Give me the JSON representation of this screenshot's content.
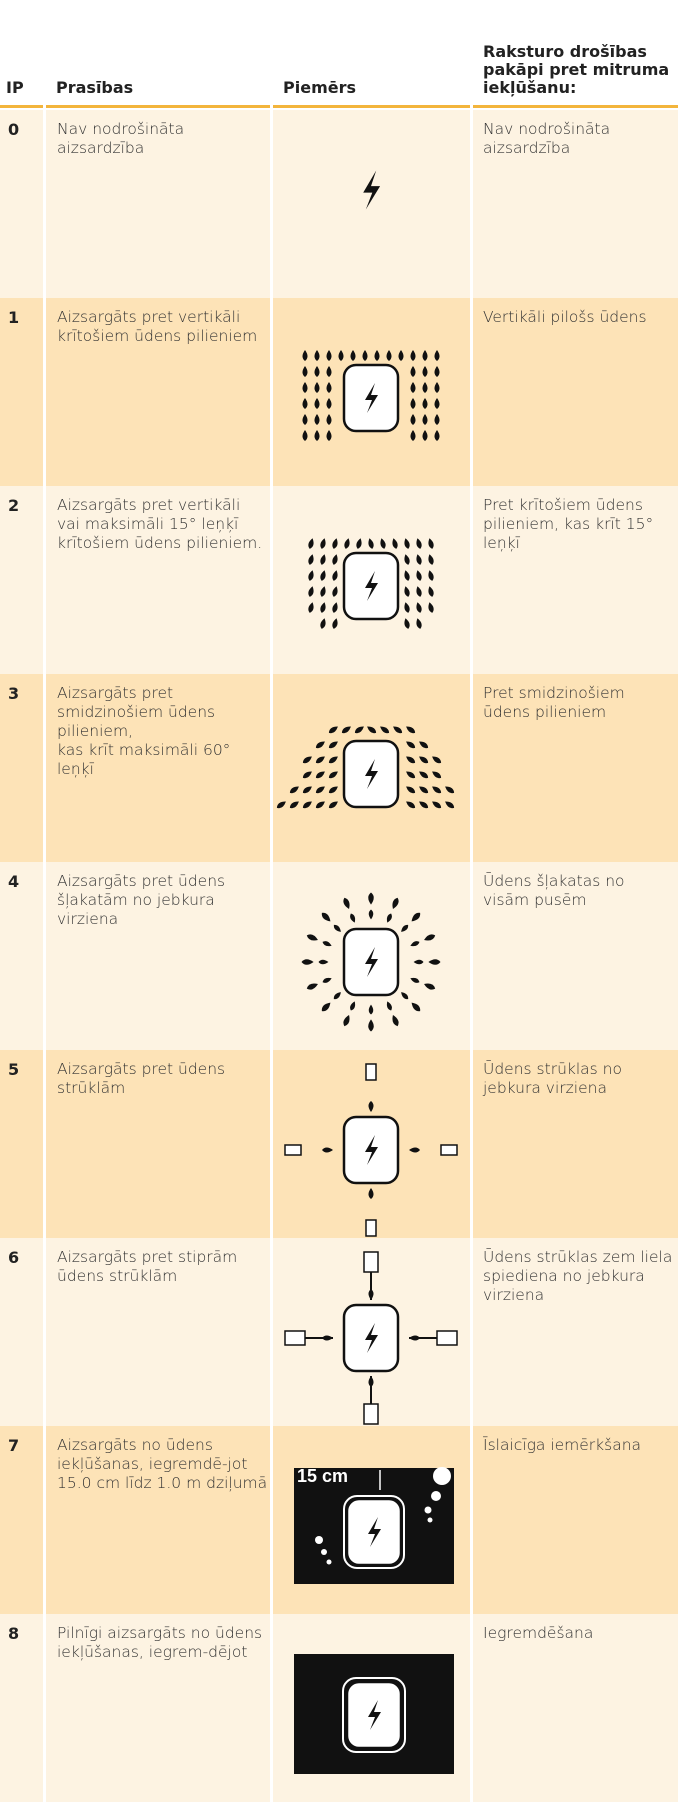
{
  "header": {
    "ip": "IP",
    "requirements": "Prasības",
    "example": "Piemērs",
    "description": "Raksturo drošības pakāpi pret mitruma iekļūšanu:"
  },
  "rows": [
    {
      "ip": "0",
      "requirement": "Nav nodrošināta aizsardzība",
      "description": "Nav nodrošināta aizsardzība"
    },
    {
      "ip": "1",
      "requirement": "Aizsargāts pret vertikāli krītošiem ūdens pilieniem",
      "description": "Vertikāli pilošs ūdens"
    },
    {
      "ip": "2",
      "requirement": "Aizsargāts pret vertikāli vai maksimāli 15° leņķī krītošiem ūdens pilieniem.",
      "description": "Pret krītošiem ūdens pilieniem, kas krīt 15° leņķī"
    },
    {
      "ip": "3",
      "requirement": "Aizsargāts pret smidzinošiem ūdens pilieniem,\nkas krīt maksimāli 60° leņķī",
      "description": "Pret smidzinošiem ūdens pilieniem"
    },
    {
      "ip": "4",
      "requirement": "Aizsargāts pret ūdens šļakatām no jebkura virziena",
      "description": "Ūdens šļakatas no visām pusēm"
    },
    {
      "ip": "5",
      "requirement": "Aizsargāts pret ūdens strūklām",
      "description": "Ūdens strūklas no jebkura virziena"
    },
    {
      "ip": "6",
      "requirement": "Aizsargāts pret stiprām ūdens strūklām",
      "description": "Ūdens strūklas zem liela spiediena no jebkura virziena"
    },
    {
      "ip": "7",
      "requirement": "Aizsargāts no ūdens iekļūšanas, iegremdē-jot 15.0 cm līdz 1.0 m dziļumā",
      "description": "Īslaicīga iemērkšana",
      "example_label": "15 cm"
    },
    {
      "ip": "8",
      "requirement": "Pilnīgi aizsargāts no ūdens iekļūšanas, iegrem-dējot",
      "description": "Iegremdēšana"
    }
  ]
}
